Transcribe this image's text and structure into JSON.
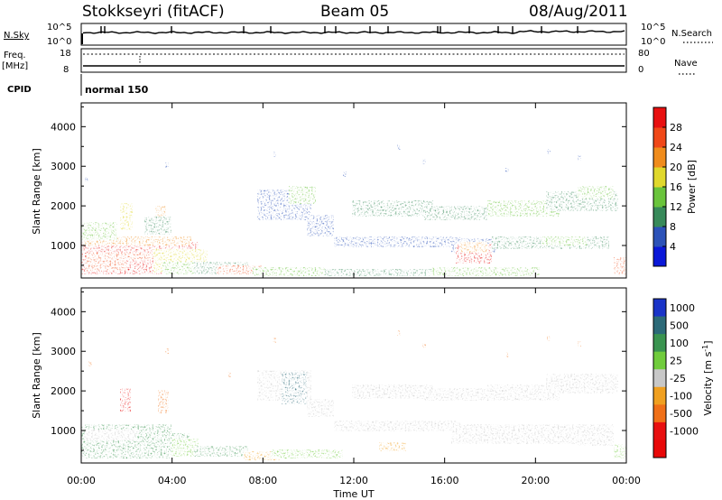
{
  "header": {
    "station": "Stokkseyri (fitACF)",
    "beam": "Beam 05",
    "date": "08/Aug/2011"
  },
  "strip": {
    "nsky_label": "N.Sky",
    "nsearch_label": "N.Search",
    "nsky_ticks": [
      "10^5",
      "10^0"
    ],
    "nsearch_ticks": [
      "10^5",
      "10^0"
    ],
    "freq_label_1": "Freq.",
    "freq_label_2": "[MHz]",
    "freq_ticks": [
      "18",
      "8"
    ],
    "nave_label": "Nave",
    "nave_ticks": [
      "80",
      "0"
    ],
    "cpid_label": "CPID",
    "cpid_value": "normal 150"
  },
  "chart_data": [
    {
      "type": "heatmap",
      "name": "power",
      "ylabel": "Slant Range [km]",
      "xlabel": "Time UT",
      "x_ticks": [
        "00:00",
        "04:00",
        "08:00",
        "12:00",
        "16:00",
        "20:00",
        "00:00"
      ],
      "y_ticks": [
        1000,
        2000,
        3000,
        4000
      ],
      "ylim": [
        180,
        4600
      ],
      "colorbar": {
        "label": "Power [dB]",
        "ticks": [
          4,
          8,
          12,
          16,
          20,
          24,
          28
        ],
        "colors": [
          "#0a18d8",
          "#2c52b8",
          "#388a5a",
          "#6ac43c",
          "#e0d82c",
          "#f08c1c",
          "#f04818",
          "#e81010"
        ]
      }
    },
    {
      "type": "heatmap",
      "name": "velocity",
      "ylabel": "Slant Range [km]",
      "xlabel": "Time UT",
      "x_ticks": [
        "00:00",
        "04:00",
        "08:00",
        "12:00",
        "16:00",
        "20:00",
        "00:00"
      ],
      "y_ticks": [
        1000,
        2000,
        3000,
        4000
      ],
      "ylim": [
        180,
        4600
      ],
      "colorbar": {
        "label": "Velocity [m s",
        "label_sup": "-1",
        "label_end": "]",
        "ticks": [
          "1000",
          "500",
          "100",
          "25",
          "-25",
          "-100",
          "-500",
          "-1000"
        ],
        "colors": [
          "#1a34c8",
          "#2c6a78",
          "#3a9450",
          "#70cc3c",
          "#c8c8c8",
          "#f0a020",
          "#f07018",
          "#e81010",
          "#e80808"
        ]
      }
    }
  ]
}
